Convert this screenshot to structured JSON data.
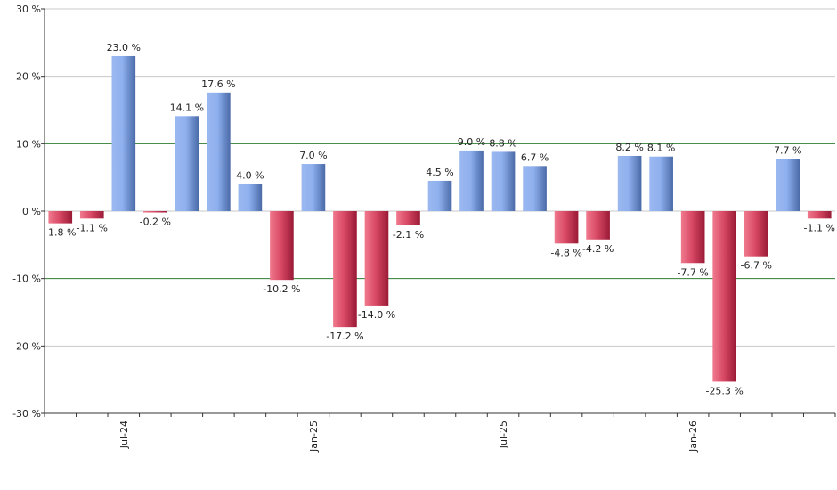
{
  "chart_data": {
    "type": "bar",
    "title": "",
    "xlabel": "",
    "ylabel": "",
    "ylim": [
      -30,
      30
    ],
    "y_ticks": [
      30,
      20,
      10,
      0,
      -10,
      -20,
      -30
    ],
    "y_tick_suffix": " %",
    "x_tick_labels": [
      {
        "label": "Jul-24",
        "index": 2
      },
      {
        "label": "Jan-25",
        "index": 8
      },
      {
        "label": "Jul-25",
        "index": 14
      },
      {
        "label": "Jan-26",
        "index": 20
      }
    ],
    "reference_lines": [
      10,
      -10
    ],
    "grid": true,
    "legend": "none",
    "values": [
      -1.8,
      -1.1,
      23.0,
      -0.2,
      14.1,
      17.6,
      4.0,
      -10.2,
      7.0,
      -17.2,
      -14.0,
      -2.1,
      4.5,
      9.0,
      8.8,
      6.7,
      -4.8,
      -4.2,
      8.2,
      8.1,
      -7.7,
      -25.3,
      -6.7,
      7.7,
      -1.1
    ],
    "data_labels": [
      "-1.8 %",
      "-1.1 %",
      "23.0 %",
      "-0.2 %",
      "14.1 %",
      "17.6 %",
      "4.0 %",
      "-10.2 %",
      "7.0 %",
      "-17.2 %",
      "-14.0 %",
      "-2.1 %",
      "4.5 %",
      "9.0 %",
      "8.8 %",
      "6.7 %",
      "-4.8 %",
      "-4.2 %",
      "8.2 %",
      "8.1 %",
      "-7.7 %",
      "-25.3 %",
      "-6.7 %",
      "7.7 %",
      "-1.1 %"
    ],
    "colors": {
      "positive_light": "#9bb8f0",
      "positive_dark": "#4a6aa8",
      "negative_light": "#f07a8e",
      "negative_dark": "#9a1a36",
      "reference_line": "#2e7d32",
      "grid": "#c8c8c8",
      "axis": "#333333"
    }
  }
}
